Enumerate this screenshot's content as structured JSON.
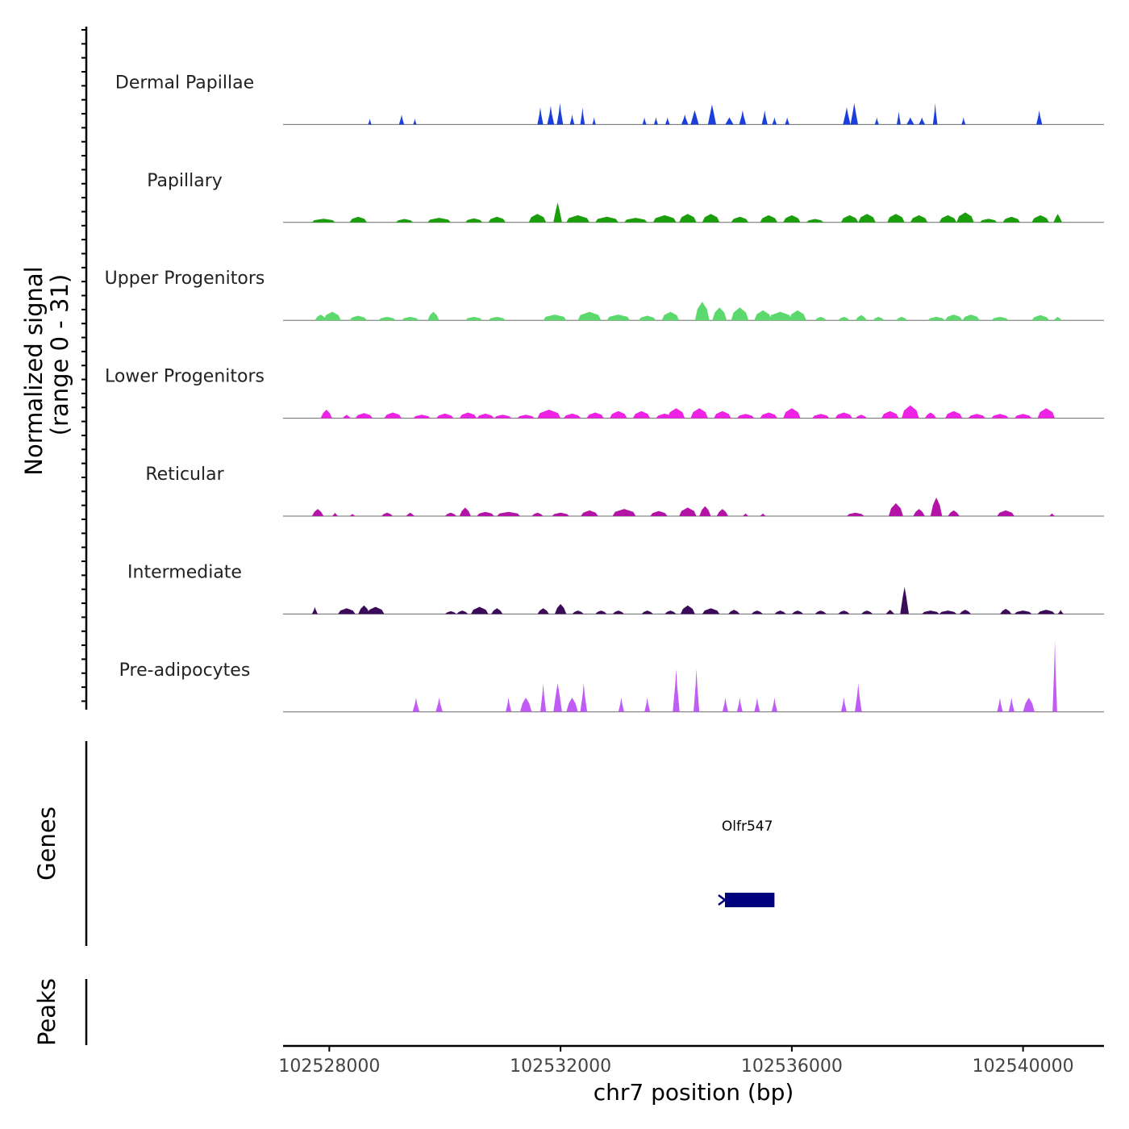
{
  "chart_data": {
    "type": "area",
    "title": "",
    "ylabel": "Normalized signal",
    "ylabel_range": "(range 0 - 31)",
    "y_range": [
      0,
      31
    ],
    "xlabel": "chr7 position (bp)",
    "x_range": [
      102527200,
      102541400
    ],
    "x_ticks": [
      102528000,
      102532000,
      102536000,
      102540000
    ],
    "x_tick_labels": [
      "102528000",
      "102532000",
      "102536000",
      "102540000"
    ],
    "genes_label": "Genes",
    "peaks_label": "Peaks",
    "tracks": [
      {
        "name": "Dermal Papillae",
        "color": "#1A3FDA",
        "peaks": [
          [
            102528700,
            60,
            2
          ],
          [
            102529250,
            90,
            3.5
          ],
          [
            102529480,
            60,
            2
          ],
          [
            102531650,
            100,
            6
          ],
          [
            102531830,
            120,
            6.5
          ],
          [
            102531990,
            110,
            7.5
          ],
          [
            102532200,
            80,
            3.5
          ],
          [
            102532380,
            80,
            6
          ],
          [
            102532580,
            60,
            2.5
          ],
          [
            102533450,
            70,
            2.5
          ],
          [
            102533650,
            70,
            2.5
          ],
          [
            102533850,
            80,
            2.5
          ],
          [
            102534150,
            120,
            3.5
          ],
          [
            102534320,
            140,
            5
          ],
          [
            102534620,
            140,
            7
          ],
          [
            102534920,
            140,
            2.5
          ],
          [
            102535150,
            120,
            5
          ],
          [
            102535530,
            100,
            5
          ],
          [
            102535700,
            80,
            2.5
          ],
          [
            102535920,
            80,
            2.5
          ],
          [
            102536950,
            130,
            6
          ],
          [
            102537080,
            130,
            7.5
          ],
          [
            102537470,
            70,
            2.5
          ],
          [
            102537850,
            70,
            4.5
          ],
          [
            102538050,
            130,
            2.5
          ],
          [
            102538250,
            110,
            2.5
          ],
          [
            102538480,
            80,
            7.5
          ],
          [
            102538970,
            70,
            2.5
          ],
          [
            102540280,
            100,
            5
          ]
        ]
      },
      {
        "name": "Papillary",
        "color": "#1A9E0C",
        "peaks": [
          [
            102527900,
            400,
            1.3
          ],
          [
            102528500,
            300,
            2
          ],
          [
            102529300,
            300,
            1.2
          ],
          [
            102529900,
            400,
            1.6
          ],
          [
            102530500,
            300,
            1.4
          ],
          [
            102530900,
            300,
            2
          ],
          [
            102531600,
            300,
            3
          ],
          [
            102531950,
            150,
            7
          ],
          [
            102532300,
            400,
            2.5
          ],
          [
            102532800,
            400,
            2
          ],
          [
            102533300,
            400,
            1.6
          ],
          [
            102533800,
            400,
            2.5
          ],
          [
            102534200,
            300,
            3
          ],
          [
            102534600,
            300,
            3
          ],
          [
            102535100,
            300,
            2
          ],
          [
            102535600,
            300,
            2.5
          ],
          [
            102536000,
            300,
            2.5
          ],
          [
            102536400,
            300,
            1.2
          ],
          [
            102537000,
            300,
            2.5
          ],
          [
            102537300,
            300,
            3
          ],
          [
            102537800,
            300,
            3
          ],
          [
            102538200,
            300,
            2.5
          ],
          [
            102538700,
            300,
            2.5
          ],
          [
            102539000,
            300,
            3.5
          ],
          [
            102539400,
            300,
            1.3
          ],
          [
            102539800,
            300,
            2
          ],
          [
            102540300,
            300,
            2.5
          ],
          [
            102540600,
            150,
            3
          ]
        ]
      },
      {
        "name": "Upper Progenitors",
        "color": "#5CD96C",
        "peaks": [
          [
            102527850,
            200,
            2
          ],
          [
            102528050,
            300,
            3
          ],
          [
            102528500,
            300,
            1.6
          ],
          [
            102529000,
            300,
            1.2
          ],
          [
            102529400,
            300,
            1.2
          ],
          [
            102529800,
            200,
            3
          ],
          [
            102530500,
            300,
            1.2
          ],
          [
            102530900,
            300,
            1.2
          ],
          [
            102531900,
            400,
            2
          ],
          [
            102532500,
            400,
            3
          ],
          [
            102533000,
            400,
            2
          ],
          [
            102533500,
            300,
            1.6
          ],
          [
            102533900,
            300,
            3
          ],
          [
            102534450,
            250,
            6.5
          ],
          [
            102534750,
            250,
            4.5
          ],
          [
            102535100,
            300,
            4.5
          ],
          [
            102535500,
            300,
            3.5
          ],
          [
            102535800,
            400,
            3
          ],
          [
            102536100,
            300,
            3.5
          ],
          [
            102536500,
            200,
            1.2
          ],
          [
            102536900,
            200,
            1.2
          ],
          [
            102537200,
            200,
            1.8
          ],
          [
            102537500,
            200,
            1.2
          ],
          [
            102537900,
            200,
            1.2
          ],
          [
            102538500,
            300,
            1.2
          ],
          [
            102538800,
            300,
            2
          ],
          [
            102539100,
            300,
            2
          ],
          [
            102539600,
            300,
            1.2
          ],
          [
            102540300,
            300,
            1.8
          ],
          [
            102540600,
            150,
            1.2
          ]
        ]
      },
      {
        "name": "Lower Progenitors",
        "color": "#EE22E4",
        "peaks": [
          [
            102527950,
            200,
            3
          ],
          [
            102528300,
            150,
            1.2
          ],
          [
            102528600,
            300,
            1.8
          ],
          [
            102529100,
            300,
            2
          ],
          [
            102529600,
            300,
            1.2
          ],
          [
            102530000,
            300,
            1.6
          ],
          [
            102530400,
            300,
            2
          ],
          [
            102530700,
            300,
            1.6
          ],
          [
            102531000,
            300,
            1.2
          ],
          [
            102531400,
            300,
            1.2
          ],
          [
            102531800,
            400,
            3
          ],
          [
            102532200,
            300,
            1.6
          ],
          [
            102532600,
            300,
            2
          ],
          [
            102533000,
            300,
            2.5
          ],
          [
            102533400,
            300,
            2.5
          ],
          [
            102533800,
            300,
            1.6
          ],
          [
            102534000,
            300,
            3.5
          ],
          [
            102534400,
            300,
            3.5
          ],
          [
            102534800,
            300,
            2.5
          ],
          [
            102535200,
            300,
            1.5
          ],
          [
            102535600,
            300,
            2
          ],
          [
            102536000,
            300,
            3.5
          ],
          [
            102536500,
            300,
            1.5
          ],
          [
            102536900,
            300,
            2
          ],
          [
            102537200,
            200,
            1.2
          ],
          [
            102537700,
            300,
            2.5
          ],
          [
            102538050,
            300,
            4.5
          ],
          [
            102538400,
            200,
            2
          ],
          [
            102538800,
            300,
            2.5
          ],
          [
            102539200,
            300,
            1.5
          ],
          [
            102539600,
            300,
            1.5
          ],
          [
            102540000,
            300,
            1.5
          ],
          [
            102540400,
            300,
            3.5
          ]
        ]
      },
      {
        "name": "Reticular",
        "color": "#B314A6",
        "peaks": [
          [
            102527800,
            200,
            2.5
          ],
          [
            102528100,
            100,
            1.2
          ],
          [
            102528400,
            100,
            0.8
          ],
          [
            102529000,
            200,
            1.2
          ],
          [
            102529400,
            150,
            1.2
          ],
          [
            102530100,
            200,
            1.2
          ],
          [
            102530350,
            200,
            3
          ],
          [
            102530700,
            300,
            1.5
          ],
          [
            102531100,
            400,
            1.5
          ],
          [
            102531600,
            200,
            1.2
          ],
          [
            102532000,
            300,
            1.2
          ],
          [
            102532500,
            300,
            2
          ],
          [
            102533100,
            400,
            2.5
          ],
          [
            102533700,
            300,
            1.8
          ],
          [
            102534200,
            300,
            3
          ],
          [
            102534500,
            200,
            3.5
          ],
          [
            102534800,
            200,
            2.5
          ],
          [
            102535200,
            100,
            1
          ],
          [
            102535500,
            100,
            1
          ],
          [
            102537100,
            300,
            1.2
          ],
          [
            102537800,
            250,
            4.5
          ],
          [
            102538200,
            200,
            2.5
          ],
          [
            102538500,
            200,
            6.5
          ],
          [
            102538800,
            200,
            2
          ],
          [
            102539700,
            300,
            2
          ],
          [
            102540500,
            100,
            1
          ]
        ]
      },
      {
        "name": "Intermediate",
        "color": "#3B0A59",
        "peaks": [
          [
            102527750,
            100,
            2.5
          ],
          [
            102528300,
            300,
            2
          ],
          [
            102528600,
            200,
            3
          ],
          [
            102528800,
            300,
            2.5
          ],
          [
            102530100,
            200,
            1
          ],
          [
            102530300,
            200,
            1.2
          ],
          [
            102530600,
            300,
            2.5
          ],
          [
            102530900,
            200,
            2
          ],
          [
            102531700,
            200,
            2
          ],
          [
            102532000,
            200,
            3.5
          ],
          [
            102532300,
            200,
            1.2
          ],
          [
            102532700,
            200,
            1.2
          ],
          [
            102533000,
            200,
            1.2
          ],
          [
            102533500,
            200,
            1.2
          ],
          [
            102533900,
            200,
            1.2
          ],
          [
            102534200,
            250,
            3
          ],
          [
            102534600,
            300,
            2
          ],
          [
            102535000,
            200,
            1.5
          ],
          [
            102535400,
            200,
            1.2
          ],
          [
            102535800,
            200,
            1.2
          ],
          [
            102536100,
            200,
            1.2
          ],
          [
            102536500,
            200,
            1.2
          ],
          [
            102536900,
            200,
            1.2
          ],
          [
            102537300,
            200,
            1.2
          ],
          [
            102537700,
            150,
            1.5
          ],
          [
            102537950,
            150,
            9.5
          ],
          [
            102538400,
            300,
            1.2
          ],
          [
            102538700,
            300,
            1.2
          ],
          [
            102539000,
            200,
            1.5
          ],
          [
            102539700,
            200,
            1.8
          ],
          [
            102540000,
            300,
            1.2
          ],
          [
            102540400,
            300,
            1.5
          ],
          [
            102540650,
            100,
            1.5
          ]
        ]
      },
      {
        "name": "Pre-adipocytes",
        "color": "#C05BF5",
        "peaks": [
          [
            102529500,
            120,
            5
          ],
          [
            102529900,
            120,
            5
          ],
          [
            102531100,
            100,
            5
          ],
          [
            102531400,
            200,
            5
          ],
          [
            102531700,
            100,
            10
          ],
          [
            102531950,
            150,
            10
          ],
          [
            102532200,
            200,
            5
          ],
          [
            102532400,
            120,
            10
          ],
          [
            102533050,
            100,
            5
          ],
          [
            102533500,
            100,
            5
          ],
          [
            102534000,
            120,
            15
          ],
          [
            102534350,
            100,
            15
          ],
          [
            102534850,
            100,
            5
          ],
          [
            102535100,
            100,
            5
          ],
          [
            102535400,
            100,
            5
          ],
          [
            102535700,
            100,
            5
          ],
          [
            102536900,
            100,
            5
          ],
          [
            102537150,
            120,
            10
          ],
          [
            102539600,
            100,
            5
          ],
          [
            102539800,
            100,
            5
          ],
          [
            102540100,
            200,
            5
          ],
          [
            102540550,
            80,
            25
          ]
        ]
      }
    ],
    "genes": [
      {
        "name": "Olfr547",
        "start": 102534760,
        "end": 102535700,
        "strand": "-"
      }
    ],
    "peaks_track": []
  }
}
